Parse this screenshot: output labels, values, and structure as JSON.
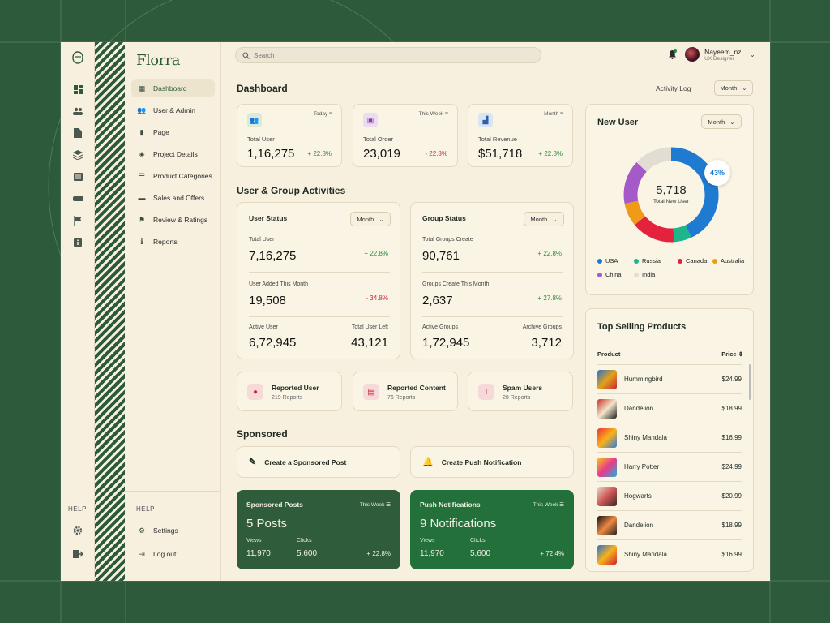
{
  "app": {
    "logo": "Florra"
  },
  "search": {
    "placeholder": "Search"
  },
  "user": {
    "name": "Nayeem_nz",
    "role": "UX Designer"
  },
  "sidebar": {
    "items": [
      {
        "label": "Dashboard",
        "icon": "grid-icon"
      },
      {
        "label": "User & Admin",
        "icon": "users-icon"
      },
      {
        "label": "Page",
        "icon": "page-icon"
      },
      {
        "label": "Project Details",
        "icon": "layers-icon"
      },
      {
        "label": "Product Categories",
        "icon": "list-icon"
      },
      {
        "label": "Sales and Offers",
        "icon": "handshake-icon"
      },
      {
        "label": "Review & Ratings",
        "icon": "flag-icon"
      },
      {
        "label": "Reports",
        "icon": "info-icon"
      }
    ],
    "help": "HELP",
    "settings": "Settings",
    "logout": "Log out"
  },
  "header": {
    "title": "Dashboard",
    "activity_log": "Activity Log",
    "period": "Month"
  },
  "stats": [
    {
      "period": "Today",
      "label": "Total User",
      "value": "1,16,275",
      "change": "+ 22.8%",
      "color": "#2c7a3e",
      "bg": "#dcebd9"
    },
    {
      "period": "This Week",
      "label": "Total Order",
      "value": "23,019",
      "change": "- 22.8%",
      "color": "#8e3aa8",
      "bg": "#ecdcf0"
    },
    {
      "period": "Month",
      "label": "Total Revenue",
      "value": "$51,718",
      "change": "+ 22.8%",
      "color": "#2b5fb0",
      "bg": "#dbe5f2"
    }
  ],
  "activities": {
    "title": "User & Group Activities",
    "user_status": {
      "title": "User Status",
      "period": "Month",
      "total_label": "Total User",
      "total_value": "7,16,275",
      "total_change": "+ 22.8%",
      "added_label": "User Added This Month",
      "added_value": "19,508",
      "added_change": "- 34.8%",
      "active_label": "Active User",
      "active_value": "6,72,945",
      "left_label": "Total User Left",
      "left_value": "43,121"
    },
    "group_status": {
      "title": "Group Status",
      "period": "Month",
      "total_label": "Total Groups Create",
      "total_value": "90,761",
      "total_change": "+ 22.8%",
      "added_label": "Groups Create This Month",
      "added_value": "2,637",
      "added_change": "+ 27.8%",
      "active_label": "Active Groups",
      "active_value": "1,72,945",
      "archive_label": "Archive Groups",
      "archive_value": "3,712"
    }
  },
  "reports": [
    {
      "title": "Reported User",
      "sub": "219 Reports",
      "icon": "user-icon"
    },
    {
      "title": "Reported Content",
      "sub": "76 Reports",
      "icon": "content-icon"
    },
    {
      "title": "Spam Users",
      "sub": "28 Reports",
      "icon": "alert-icon"
    }
  ],
  "sponsored": {
    "title": "Sponsored",
    "create_post": "Create a Sponsored Post",
    "create_push": "Create Push Notification",
    "posts": {
      "title": "Sponsored Posts",
      "period": "This Week",
      "value": "5 Posts",
      "views_label": "Views",
      "views": "11,970",
      "clicks_label": "Clicks",
      "clicks": "5,600",
      "change": "+ 22.8%"
    },
    "push": {
      "title": "Push Notifications",
      "period": "This Week",
      "value": "9 Notifications",
      "views_label": "Views",
      "views": "11,970",
      "clicks_label": "Clicks",
      "clicks": "5,600",
      "change": "+ 72.4%"
    }
  },
  "new_user": {
    "title": "New User",
    "period": "Month",
    "total": "5,718",
    "total_label": "Total New User",
    "callout": "43%"
  },
  "chart_data": {
    "type": "pie",
    "categories": [
      "USA",
      "Russia",
      "Canada",
      "Australia",
      "China",
      "India"
    ],
    "values": [
      43,
      6,
      15,
      8,
      15,
      13
    ],
    "colors": [
      "#1f7ad1",
      "#1fb58a",
      "#e4223e",
      "#f09a1a",
      "#a55ac9",
      "#e2ddd2"
    ],
    "legend": "bottom"
  },
  "top_products": {
    "title": "Top Selling Products",
    "col_product": "Product",
    "col_price": "Price",
    "items": [
      {
        "name": "Hummingbird",
        "price": "$24.99"
      },
      {
        "name": "Dandelion",
        "price": "$18.99"
      },
      {
        "name": "Shiny Mandala",
        "price": "$16.99"
      },
      {
        "name": "Harry Potter",
        "price": "$24.99"
      },
      {
        "name": "Hogwarts",
        "price": "$20.99"
      },
      {
        "name": "Dandelion",
        "price": "$18.99"
      },
      {
        "name": "Shiny Mandala",
        "price": "$16.99"
      }
    ]
  }
}
